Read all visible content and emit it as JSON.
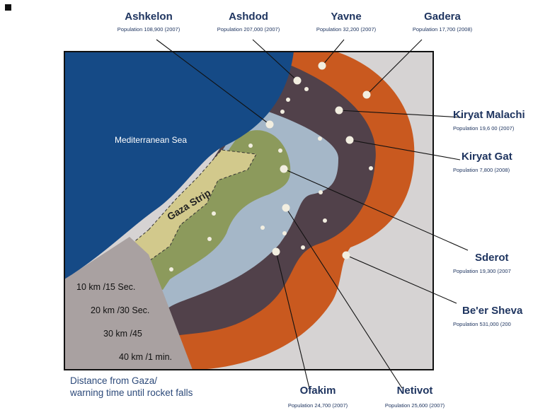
{
  "map": {
    "sea_label": "Mediterranean Sea",
    "strip_label": "Gaza Strip",
    "caption_line1": "Distance from Gaza/",
    "caption_line2": "warning time until rocket falls",
    "zones": [
      {
        "label": "10 km /15 Sec.",
        "color": "#8c9a5c"
      },
      {
        "label": "20 km /30 Sec.",
        "color": "#a5b7c8"
      },
      {
        "label": "30 km /45",
        "color": "#51414a"
      },
      {
        "label": "40 km /1 min.",
        "color": "#c9591f"
      }
    ],
    "colors": {
      "sea": "#154a86",
      "gaza_strip": "#d2c98c",
      "outside": "#d6d3d3",
      "legend_panel": "#a9a1a1",
      "labels": "#1f3560"
    },
    "cities": [
      {
        "name": "Ashkelon",
        "population": "Population 108,900 (2007)"
      },
      {
        "name": "Ashdod",
        "population": "Population 207,000 (2007)"
      },
      {
        "name": "Yavne",
        "population": "Population 32,200 (2007)"
      },
      {
        "name": "Gadera",
        "population": "Population 17,700 (2008)"
      },
      {
        "name": "Kiryat Malachi",
        "population": "Population 19,6 00 (2007)"
      },
      {
        "name": "Kiryat Gat",
        "population": "Population 7,800 (2008)"
      },
      {
        "name": "Sderot",
        "population": "Population 19,300 (2007"
      },
      {
        "name": "Be'er Sheva",
        "population": "Population 531,000 (200"
      },
      {
        "name": "Ofakim",
        "population": "Population 24,700 (2007)"
      },
      {
        "name": "Netivot",
        "population": "Population 25,600 (2007)"
      }
    ]
  }
}
